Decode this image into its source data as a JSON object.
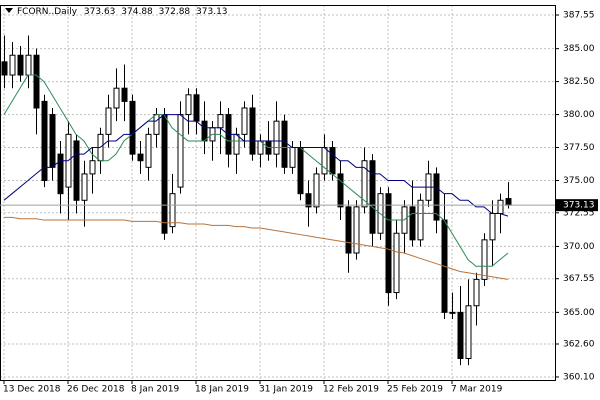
{
  "chart_data": {
    "type": "candlestick",
    "symbol": "FCORN..Daily",
    "header_ohlc": [
      373.63,
      374.88,
      372.88,
      373.13
    ],
    "current_price": 373.13,
    "categories": [
      "13 Dec 2018",
      null,
      null,
      null,
      null,
      null,
      null,
      null,
      "26 Dec 2018",
      null,
      null,
      null,
      null,
      null,
      null,
      null,
      "8 Jan 2019",
      null,
      null,
      null,
      null,
      null,
      null,
      null,
      "18 Jan 2019",
      null,
      null,
      null,
      null,
      null,
      null,
      null,
      "31 Jan 2019",
      null,
      null,
      null,
      null,
      null,
      null,
      null,
      "12 Feb 2019",
      null,
      null,
      null,
      null,
      null,
      null,
      null,
      "25 Feb 2019",
      null,
      null,
      null,
      null,
      null,
      null,
      null,
      "7 Mar 2019",
      null,
      null,
      null,
      null,
      null,
      null,
      null
    ],
    "open": [
      384.0,
      383.0,
      384.5,
      383.0,
      384.5,
      381.0,
      380.0,
      377.0,
      374.5,
      378.0,
      373.5,
      375.5,
      376.5,
      378.5,
      380.5,
      382.0,
      381.0,
      377.0,
      376.0,
      378.5,
      380.0,
      371.5,
      374.5,
      380.0,
      381.5,
      379.5,
      378.0,
      379.0,
      380.0,
      377.0,
      378.5,
      380.5,
      377.0,
      378.0,
      377.0,
      379.5,
      376.0,
      377.5,
      374.0,
      373.0,
      375.5,
      377.5,
      375.5,
      373.0,
      369.5,
      373.0,
      376.5,
      371.0,
      374.0,
      366.5,
      371.0,
      373.0,
      370.5,
      373.5,
      375.5,
      372.0,
      365.0,
      365.0,
      361.5,
      365.5,
      367.5,
      370.5,
      372.5,
      373.63
    ],
    "high": [
      386.0,
      385.5,
      385.2,
      386.0,
      385.0,
      381.5,
      380.5,
      378.0,
      379.5,
      378.5,
      376.5,
      377.5,
      379.0,
      381.5,
      383.5,
      383.8,
      381.5,
      378.0,
      379.0,
      380.5,
      380.5,
      375.5,
      381.0,
      382.0,
      382.0,
      381.0,
      379.5,
      381.0,
      380.5,
      379.0,
      381.0,
      381.5,
      378.5,
      379.5,
      381.0,
      380.0,
      378.0,
      378.0,
      375.0,
      376.0,
      378.5,
      378.0,
      376.5,
      373.5,
      373.5,
      377.5,
      377.0,
      374.5,
      374.5,
      372.0,
      373.5,
      375.0,
      374.0,
      376.5,
      376.0,
      374.0,
      366.5,
      367.0,
      367.5,
      368.0,
      371.0,
      373.5,
      374.0,
      374.88
    ],
    "low": [
      382.0,
      382.0,
      382.5,
      382.0,
      378.5,
      374.5,
      375.0,
      372.5,
      372.0,
      372.5,
      371.5,
      374.0,
      375.5,
      377.5,
      379.5,
      379.5,
      376.5,
      375.5,
      375.0,
      377.5,
      370.5,
      371.0,
      374.0,
      378.5,
      378.5,
      377.0,
      376.5,
      377.0,
      376.0,
      375.5,
      377.5,
      376.5,
      376.0,
      376.5,
      376.0,
      375.5,
      375.5,
      373.5,
      371.5,
      372.5,
      375.0,
      375.0,
      372.0,
      368.0,
      369.0,
      372.5,
      370.0,
      370.5,
      365.5,
      366.0,
      369.5,
      370.0,
      370.0,
      373.0,
      371.0,
      364.5,
      364.5,
      361.0,
      361.0,
      364.0,
      367.0,
      368.5,
      371.0,
      372.88
    ],
    "close": [
      383.0,
      384.5,
      383.0,
      384.5,
      380.5,
      375.0,
      376.0,
      374.0,
      378.5,
      373.5,
      375.5,
      376.5,
      378.5,
      380.5,
      382.0,
      381.0,
      377.0,
      376.5,
      378.5,
      380.0,
      371.0,
      374.0,
      380.0,
      381.5,
      379.5,
      378.0,
      379.0,
      380.0,
      377.0,
      378.5,
      380.5,
      377.0,
      378.0,
      377.0,
      379.5,
      376.0,
      377.5,
      374.0,
      373.0,
      375.5,
      377.5,
      375.5,
      373.0,
      369.5,
      373.0,
      376.5,
      371.0,
      374.0,
      366.5,
      371.0,
      373.0,
      370.5,
      373.5,
      375.5,
      372.0,
      365.0,
      365.0,
      361.5,
      365.5,
      367.5,
      370.5,
      372.5,
      373.5,
      373.13
    ],
    "lines": [
      {
        "color": "#2e8b57",
        "values": [
          380,
          381,
          382,
          383,
          383,
          382.5,
          381.5,
          380.5,
          379.5,
          378.5,
          378,
          377,
          376.5,
          376.5,
          377,
          378,
          378.5,
          379,
          379.5,
          380,
          380,
          379,
          378.5,
          378,
          378,
          378,
          378.5,
          378.5,
          378,
          378,
          378,
          378,
          378,
          377.5,
          377.5,
          377.5,
          377.5,
          377.5,
          377,
          376.5,
          376,
          375.5,
          375,
          374.5,
          374,
          373.5,
          373,
          372.5,
          372,
          372,
          372,
          372.5,
          372.5,
          372.5,
          372.5,
          372,
          371,
          370,
          369,
          368.5,
          368.5,
          368.5,
          369,
          369.5
        ]
      },
      {
        "color": "#000080",
        "values": [
          373.5,
          374,
          374.5,
          375,
          375.5,
          376,
          376,
          376.5,
          376.5,
          377,
          377,
          377.5,
          377.5,
          378,
          378,
          378.5,
          378.5,
          379,
          379.5,
          379.5,
          380,
          380,
          380,
          379.5,
          379.5,
          379,
          379,
          379,
          378.5,
          378.5,
          378,
          378,
          378,
          378,
          378,
          378,
          377.5,
          377.5,
          377.5,
          377.5,
          377.5,
          377,
          376.5,
          376.5,
          376,
          376,
          375.5,
          375.5,
          375,
          375,
          375,
          374.5,
          374.5,
          374.5,
          374.5,
          374,
          374,
          373.5,
          373.5,
          373,
          373,
          372.5,
          372.5,
          372.3
        ]
      },
      {
        "color": "#b8733a",
        "values": [
          372.2,
          372.2,
          372.1,
          372.1,
          372.1,
          372,
          372,
          372,
          372,
          372,
          372,
          372,
          372,
          372,
          372,
          372,
          371.9,
          371.9,
          371.9,
          371.9,
          371.8,
          371.8,
          371.8,
          371.7,
          371.7,
          371.7,
          371.6,
          371.6,
          371.6,
          371.5,
          371.5,
          371.4,
          371.4,
          371.3,
          371.2,
          371.1,
          371,
          370.9,
          370.8,
          370.7,
          370.6,
          370.5,
          370.4,
          370.3,
          370.2,
          370.1,
          370,
          369.9,
          369.8,
          369.6,
          369.5,
          369.3,
          369.1,
          368.9,
          368.7,
          368.5,
          368.3,
          368.1,
          368,
          367.9,
          367.8,
          367.7,
          367.6,
          367.5
        ]
      }
    ],
    "ylim": [
      359.87,
      388.31
    ],
    "yticks": [
      387.55,
      {
        "value": 385,
        "label": "385.00"
      },
      {
        "value": 382.5,
        "label": "382.50"
      },
      {
        "value": 380,
        "label": "380.00"
      },
      {
        "value": 377.5,
        "label": "377.50"
      },
      {
        "value": 375,
        "label": "375.00"
      },
      372.55,
      {
        "value": 370,
        "label": "370.00"
      },
      367.55,
      {
        "value": 365,
        "label": "365.00"
      },
      {
        "value": 362.6,
        "label": "362.60"
      },
      {
        "value": 360.1,
        "label": "360.10"
      }
    ],
    "grid": true
  }
}
